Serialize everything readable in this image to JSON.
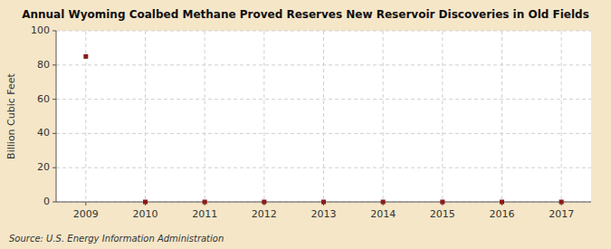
{
  "chart_data": {
    "type": "scatter",
    "title": "Annual Wyoming Coalbed Methane Proved Reserves New Reservoir Discoveries in Old Fields",
    "ylabel": "Billion Cubic Feet",
    "source": "Source: U.S. Energy Information Administration",
    "x": [
      2009,
      2010,
      2011,
      2012,
      2013,
      2014,
      2015,
      2016,
      2017
    ],
    "values": [
      85.0,
      0.0,
      0.0,
      0.0,
      0.0,
      0.0,
      0.0,
      0.0,
      0.0
    ],
    "xlim": [
      2008.5,
      2017.5
    ],
    "ylim": [
      0,
      100
    ],
    "xticks": [
      2009,
      2010,
      2011,
      2012,
      2013,
      2014,
      2015,
      2016,
      2017
    ],
    "yticks": [
      0,
      20,
      40,
      60,
      80,
      100
    ],
    "grid": true,
    "color": "#8b1a1a",
    "marker": "square"
  }
}
